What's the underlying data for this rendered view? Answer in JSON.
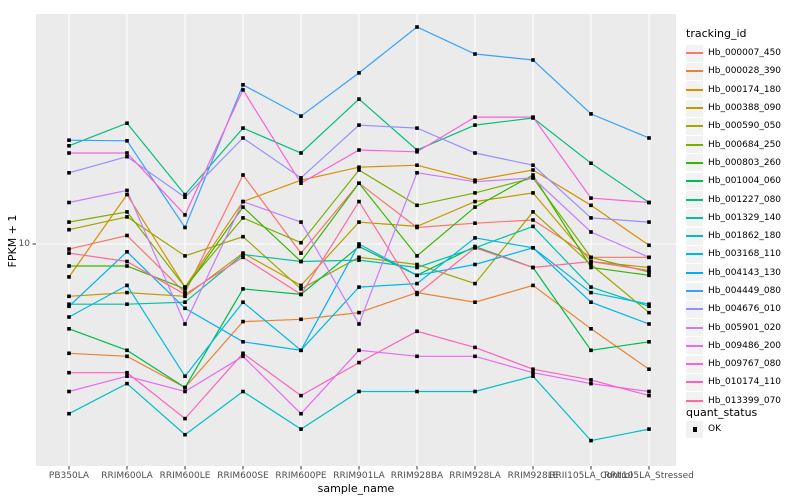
{
  "figure": {
    "panel": {
      "bg_color": "#EBEBEB",
      "grid_color": "#FFFFFF",
      "point_color": "#000000",
      "tick_color": "#333333"
    },
    "y_axis": {
      "title": "FPKM + 1",
      "tick_label": "10",
      "scale": "log10"
    },
    "x_axis": {
      "title": "sample_name"
    },
    "legend": {
      "title": "tracking_id"
    },
    "quant_legend": {
      "title": "quant_status",
      "items": [
        {
          "label": "OK"
        }
      ]
    }
  },
  "chart_data": {
    "type": "line",
    "title": "",
    "xlabel": "sample_name",
    "ylabel": "FPKM + 1",
    "y_scale": "log10",
    "y_breaks": [
      10
    ],
    "ylim": [
      1.9,
      62
    ],
    "legend_position": "right",
    "grid": true,
    "categories": [
      "PB350LA",
      "RRIM600LA",
      "RRIM600LE",
      "RRIM600SE",
      "RRIM600PE",
      "RRIM901LA",
      "RRIM928BA",
      "RRIM928LA",
      "RRIM928LE",
      "RRII105LA_Control",
      "RRII105LA_Stressed"
    ],
    "quant_status": "OK",
    "series": [
      {
        "name": "Hb_000007_450",
        "color": "#F8766D",
        "values": [
          9.6,
          10.7,
          6.8,
          17.3,
          9.3,
          16.2,
          11.4,
          11.8,
          12.1,
          9.0,
          9.0
        ]
      },
      {
        "name": "Hb_000028_390",
        "color": "#EA8331",
        "values": [
          4.2,
          4.1,
          3.2,
          5.4,
          5.5,
          5.8,
          6.8,
          6.3,
          7.2,
          5.1,
          3.7
        ]
      },
      {
        "name": "Hb_000174_180",
        "color": "#D89000",
        "values": [
          7.7,
          14.8,
          7.1,
          14.0,
          16.6,
          18.4,
          18.7,
          16.6,
          18.0,
          13.6,
          9.9
        ]
      },
      {
        "name": "Hb_000388_090",
        "color": "#C09B00",
        "values": [
          6.6,
          6.8,
          6.6,
          9.3,
          7.2,
          11.9,
          11.5,
          14.0,
          15.0,
          8.7,
          8.3
        ]
      },
      {
        "name": "Hb_000590_050",
        "color": "#A3A500",
        "values": [
          11.2,
          12.4,
          9.1,
          10.6,
          7.0,
          9.0,
          8.5,
          7.3,
          12.9,
          8.5,
          5.8
        ]
      },
      {
        "name": "Hb_000684_250",
        "color": "#7CAE00",
        "values": [
          11.9,
          12.9,
          7.1,
          12.3,
          10.1,
          18.0,
          13.6,
          15.0,
          16.9,
          9.0,
          8.0
        ]
      },
      {
        "name": "Hb_000803_260",
        "color": "#39B600",
        "values": [
          8.4,
          8.4,
          7.0,
          13.4,
          8.7,
          16.2,
          9.1,
          13.4,
          17.3,
          8.3,
          7.8
        ]
      },
      {
        "name": "Hb_001004_060",
        "color": "#00BB4E",
        "values": [
          5.1,
          4.3,
          3.2,
          7.0,
          6.7,
          9.8,
          7.8,
          9.8,
          8.3,
          4.3,
          4.6
        ]
      },
      {
        "name": "Hb_001227_080",
        "color": "#00BF7D",
        "values": [
          21.8,
          26.1,
          14.8,
          25.1,
          20.6,
          31.6,
          21.1,
          25.7,
          27.2,
          19.0,
          13.9
        ]
      },
      {
        "name": "Hb_001329_140",
        "color": "#00C1A3",
        "values": [
          6.2,
          6.2,
          6.3,
          9.2,
          8.7,
          8.8,
          8.3,
          9.7,
          11.5,
          7.1,
          6.1
        ]
      },
      {
        "name": "Hb_001862_180",
        "color": "#00BFC4",
        "values": [
          2.6,
          3.3,
          2.2,
          3.1,
          2.3,
          3.1,
          3.1,
          3.1,
          3.5,
          2.1,
          2.3
        ]
      },
      {
        "name": "Hb_003168_110",
        "color": "#00BAE0",
        "values": [
          5.6,
          7.2,
          3.5,
          6.3,
          4.3,
          7.1,
          7.3,
          10.5,
          9.7,
          6.8,
          6.2
        ]
      },
      {
        "name": "Hb_004143_130",
        "color": "#00B0F6",
        "values": [
          6.1,
          9.4,
          6.0,
          4.6,
          4.3,
          10.0,
          7.8,
          8.5,
          9.7,
          6.3,
          5.3
        ]
      },
      {
        "name": "Hb_004449_080",
        "color": "#35A2FF",
        "values": [
          22.8,
          22.7,
          11.4,
          35.4,
          27.6,
          38.9,
          56.0,
          45.2,
          43.1,
          28.1,
          23.2
        ]
      },
      {
        "name": "Hb_004676_010",
        "color": "#9590FF",
        "values": [
          17.6,
          20.0,
          14.5,
          23.2,
          16.9,
          25.7,
          25.1,
          20.6,
          18.7,
          12.3,
          11.9
        ]
      },
      {
        "name": "Hb_005901_020",
        "color": "#C77CFF",
        "values": [
          13.9,
          15.3,
          5.3,
          14.0,
          11.9,
          5.3,
          17.6,
          16.4,
          16.9,
          11.0,
          9.0
        ]
      },
      {
        "name": "Hb_009486_200",
        "color": "#E76BF3",
        "values": [
          3.1,
          3.5,
          3.1,
          4.1,
          2.6,
          4.3,
          4.1,
          4.1,
          3.6,
          3.3,
          3.1
        ]
      },
      {
        "name": "Hb_009767_080",
        "color": "#FA62DB",
        "values": [
          20.6,
          20.6,
          12.6,
          34.0,
          16.2,
          21.1,
          20.8,
          27.4,
          27.4,
          14.4,
          13.9
        ]
      },
      {
        "name": "Hb_010174_110",
        "color": "#FF62BC",
        "values": [
          3.6,
          3.6,
          2.5,
          4.2,
          3.0,
          3.9,
          5.0,
          4.4,
          3.7,
          3.4,
          3.0
        ]
      },
      {
        "name": "Hb_013399_070",
        "color": "#FF6A98",
        "values": [
          9.3,
          8.7,
          6.7,
          9.0,
          6.7,
          14.0,
          6.7,
          9.7,
          8.3,
          8.7,
          8.1
        ]
      }
    ]
  }
}
